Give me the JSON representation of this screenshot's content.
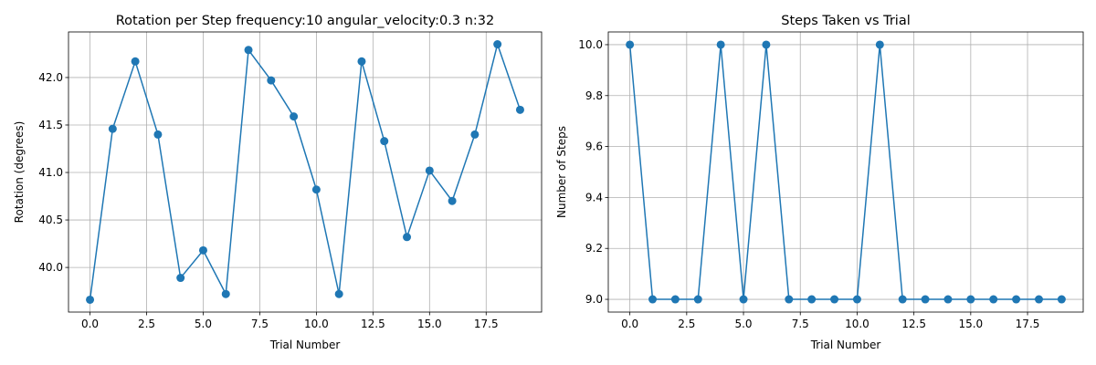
{
  "chart_data": [
    {
      "type": "line",
      "title": "Rotation per Step frequency:10 angular_velocity:0.3 n:32",
      "xlabel": "Trial Number",
      "ylabel": "Rotation (degrees)",
      "x": [
        0,
        1,
        2,
        3,
        4,
        5,
        6,
        7,
        8,
        9,
        10,
        11,
        12,
        13,
        14,
        15,
        16,
        17,
        18,
        19
      ],
      "y": [
        39.66,
        41.46,
        42.17,
        41.4,
        39.89,
        40.18,
        39.72,
        42.29,
        41.97,
        41.59,
        40.82,
        39.72,
        42.17,
        41.33,
        40.32,
        41.02,
        40.7,
        41.4,
        42.35,
        41.66
      ],
      "xlim": [
        -0.95,
        19.95
      ],
      "ylim": [
        39.53,
        42.48
      ],
      "xticks": [
        0,
        2.5,
        5,
        7.5,
        10,
        12.5,
        15,
        17.5
      ],
      "xtick_labels": [
        "0.0",
        "2.5",
        "5.0",
        "7.5",
        "10.0",
        "12.5",
        "15.0",
        "17.5"
      ],
      "yticks": [
        40,
        40.5,
        41,
        41.5,
        42
      ],
      "ytick_labels": [
        "40.0",
        "40.5",
        "41.0",
        "41.5",
        "42.0"
      ],
      "grid": true,
      "color": "#1f77b4",
      "marker": "circle"
    },
    {
      "type": "line",
      "title": "Steps Taken vs Trial",
      "xlabel": "Trial Number",
      "ylabel": "Number of Steps",
      "x": [
        0,
        1,
        2,
        3,
        4,
        5,
        6,
        7,
        8,
        9,
        10,
        11,
        12,
        13,
        14,
        15,
        16,
        17,
        18,
        19
      ],
      "y": [
        10,
        9,
        9,
        9,
        10,
        9,
        10,
        9,
        9,
        9,
        9,
        10,
        9,
        9,
        9,
        9,
        9,
        9,
        9,
        9
      ],
      "xlim": [
        -0.95,
        19.95
      ],
      "ylim": [
        8.95,
        10.05
      ],
      "xticks": [
        0,
        2.5,
        5,
        7.5,
        10,
        12.5,
        15,
        17.5
      ],
      "xtick_labels": [
        "0.0",
        "2.5",
        "5.0",
        "7.5",
        "10.0",
        "12.5",
        "15.0",
        "17.5"
      ],
      "yticks": [
        9.0,
        9.2,
        9.4,
        9.6,
        9.8,
        10.0
      ],
      "ytick_labels": [
        "9.0",
        "9.2",
        "9.4",
        "9.6",
        "9.8",
        "10.0"
      ],
      "grid": true,
      "color": "#1f77b4",
      "marker": "circle"
    }
  ]
}
